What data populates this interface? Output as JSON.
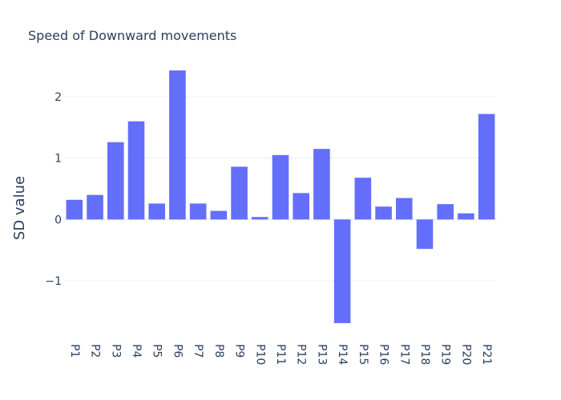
{
  "chart_data": {
    "type": "bar",
    "title": "Speed of Downward movements",
    "xlabel": "",
    "ylabel": "SD value",
    "categories": [
      "P1",
      "P2",
      "P3",
      "P4",
      "P5",
      "P6",
      "P7",
      "P8",
      "P9",
      "P10",
      "P11",
      "P12",
      "P13",
      "P14",
      "P15",
      "P16",
      "P17",
      "P18",
      "P19",
      "P20",
      "P21"
    ],
    "values": [
      0.32,
      0.4,
      1.26,
      1.6,
      0.26,
      2.43,
      0.26,
      0.14,
      0.86,
      0.04,
      1.05,
      0.43,
      1.15,
      -1.69,
      0.68,
      0.21,
      0.35,
      -0.48,
      0.25,
      0.1,
      1.72
    ],
    "ylim": [
      -1.9,
      2.6
    ],
    "yticks": [
      -1,
      0,
      1,
      2
    ],
    "ytick_labels": [
      "−1",
      "0",
      "1",
      "2"
    ],
    "grid": true,
    "bar_color": "#636efa"
  }
}
